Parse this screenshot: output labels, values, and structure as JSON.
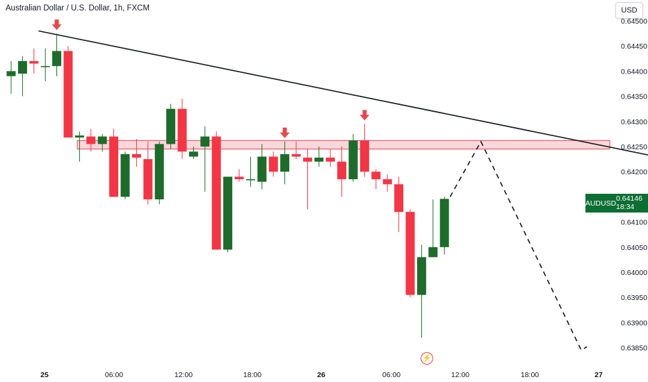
{
  "header": {
    "title": "Australian Dollar / U.S. Dollar, 1h, FXCM",
    "currency_button": "USD"
  },
  "price_tag": {
    "symbol": "AUDUSD",
    "price": "0.64146",
    "countdown": "18:34"
  },
  "colors": {
    "up": "#1e6b2b",
    "down": "#f23645",
    "trendline": "#131722",
    "zone_fill": "#f8c9cf",
    "zone_stroke": "#e5484d",
    "arrow": "#e5484d"
  },
  "icons": {
    "alert": "lightning-bolt-icon",
    "marker": "down-arrow-icon"
  },
  "chart_data": {
    "type": "candlestick",
    "title": "Australian Dollar / U.S. Dollar, 1h, FXCM",
    "symbol": "AUDUSD",
    "timeframe": "1h",
    "ylim": [
      0.6383,
      0.645
    ],
    "y_ticks": [
      "0.64500",
      "0.64450",
      "0.64400",
      "0.64350",
      "0.64300",
      "0.64250",
      "0.64200",
      "0.64150",
      "0.64100",
      "0.64050",
      "0.64000",
      "0.63950",
      "0.63900",
      "0.63850"
    ],
    "x_ticks": [
      "25",
      "06:00",
      "12:00",
      "18:00",
      "26",
      "06:00",
      "12:00",
      "18:00",
      "27"
    ],
    "grid": false,
    "candles": [
      {
        "t": 0,
        "o": 0.6439,
        "h": 0.6442,
        "l": 0.64355,
        "c": 0.644
      },
      {
        "t": 1,
        "o": 0.64395,
        "h": 0.6443,
        "l": 0.6435,
        "c": 0.6442
      },
      {
        "t": 2,
        "o": 0.6442,
        "h": 0.64445,
        "l": 0.64395,
        "c": 0.64415
      },
      {
        "t": 3,
        "o": 0.6441,
        "h": 0.64445,
        "l": 0.6438,
        "c": 0.6441
      },
      {
        "t": 4,
        "o": 0.6441,
        "h": 0.64475,
        "l": 0.6439,
        "c": 0.6444
      },
      {
        "t": 5,
        "o": 0.6444,
        "h": 0.6445,
        "l": 0.64268,
        "c": 0.64268
      },
      {
        "t": 6,
        "o": 0.64268,
        "h": 0.6428,
        "l": 0.6422,
        "c": 0.64272
      },
      {
        "t": 7,
        "o": 0.6427,
        "h": 0.64285,
        "l": 0.6424,
        "c": 0.64255
      },
      {
        "t": 8,
        "o": 0.64255,
        "h": 0.64275,
        "l": 0.6424,
        "c": 0.6427
      },
      {
        "t": 9,
        "o": 0.6427,
        "h": 0.64285,
        "l": 0.6415,
        "c": 0.6415
      },
      {
        "t": 10,
        "o": 0.6415,
        "h": 0.6424,
        "l": 0.64145,
        "c": 0.64235
      },
      {
        "t": 11,
        "o": 0.64235,
        "h": 0.64265,
        "l": 0.6421,
        "c": 0.64228
      },
      {
        "t": 12,
        "o": 0.64225,
        "h": 0.6426,
        "l": 0.64135,
        "c": 0.64145
      },
      {
        "t": 13,
        "o": 0.64145,
        "h": 0.6426,
        "l": 0.64135,
        "c": 0.64255
      },
      {
        "t": 14,
        "o": 0.64255,
        "h": 0.64335,
        "l": 0.64245,
        "c": 0.64325
      },
      {
        "t": 15,
        "o": 0.64325,
        "h": 0.64345,
        "l": 0.64225,
        "c": 0.6424
      },
      {
        "t": 16,
        "o": 0.6423,
        "h": 0.6425,
        "l": 0.64225,
        "c": 0.6424
      },
      {
        "t": 17,
        "o": 0.6425,
        "h": 0.6429,
        "l": 0.6416,
        "c": 0.6427
      },
      {
        "t": 18,
        "o": 0.6427,
        "h": 0.6428,
        "l": 0.64045,
        "c": 0.64045
      },
      {
        "t": 19,
        "o": 0.64045,
        "h": 0.6419,
        "l": 0.6404,
        "c": 0.6419
      },
      {
        "t": 20,
        "o": 0.6419,
        "h": 0.64205,
        "l": 0.6418,
        "c": 0.64185
      },
      {
        "t": 21,
        "o": 0.64185,
        "h": 0.6423,
        "l": 0.6417,
        "c": 0.64185
      },
      {
        "t": 22,
        "o": 0.6418,
        "h": 0.64255,
        "l": 0.64165,
        "c": 0.6423
      },
      {
        "t": 23,
        "o": 0.6423,
        "h": 0.6424,
        "l": 0.6419,
        "c": 0.642
      },
      {
        "t": 24,
        "o": 0.642,
        "h": 0.6426,
        "l": 0.64175,
        "c": 0.64235
      },
      {
        "t": 25,
        "o": 0.64235,
        "h": 0.6426,
        "l": 0.64225,
        "c": 0.6423
      },
      {
        "t": 26,
        "o": 0.64228,
        "h": 0.64245,
        "l": 0.64125,
        "c": 0.6422
      },
      {
        "t": 27,
        "o": 0.6422,
        "h": 0.6425,
        "l": 0.6421,
        "c": 0.64228
      },
      {
        "t": 28,
        "o": 0.64228,
        "h": 0.64245,
        "l": 0.6421,
        "c": 0.6422
      },
      {
        "t": 29,
        "o": 0.6422,
        "h": 0.6425,
        "l": 0.6415,
        "c": 0.64185
      },
      {
        "t": 30,
        "o": 0.64185,
        "h": 0.64275,
        "l": 0.6418,
        "c": 0.64262
      },
      {
        "t": 31,
        "o": 0.64262,
        "h": 0.64295,
        "l": 0.6419,
        "c": 0.642
      },
      {
        "t": 32,
        "o": 0.642,
        "h": 0.64205,
        "l": 0.64165,
        "c": 0.64185
      },
      {
        "t": 33,
        "o": 0.64185,
        "h": 0.64195,
        "l": 0.6416,
        "c": 0.64175
      },
      {
        "t": 34,
        "o": 0.64175,
        "h": 0.6419,
        "l": 0.6408,
        "c": 0.6412
      },
      {
        "t": 35,
        "o": 0.6412,
        "h": 0.64125,
        "l": 0.6395,
        "c": 0.63955
      },
      {
        "t": 36,
        "o": 0.63955,
        "h": 0.64055,
        "l": 0.6387,
        "c": 0.6403
      },
      {
        "t": 37,
        "o": 0.6403,
        "h": 0.64145,
        "l": 0.6403,
        "c": 0.6405
      },
      {
        "t": 38,
        "o": 0.6405,
        "h": 0.6415,
        "l": 0.64035,
        "c": 0.64146
      }
    ],
    "trendline": {
      "from": {
        "t": 2.4,
        "p": 0.6448
      },
      "to": {
        "t": 62,
        "p": 0.64205
      }
    },
    "resistance_zone": {
      "t_start": 5.8,
      "t_end": 52.5,
      "p_low": 0.64245,
      "p_high": 0.64262
    },
    "projection": [
      {
        "t": 38.5,
        "p": 0.6415
      },
      {
        "t": 41.2,
        "p": 0.6426
      },
      {
        "t": 50.0,
        "p": 0.63845
      },
      {
        "t": 50.5,
        "p": 0.63852
      }
    ],
    "arrow_markers": [
      4,
      24,
      31
    ]
  }
}
